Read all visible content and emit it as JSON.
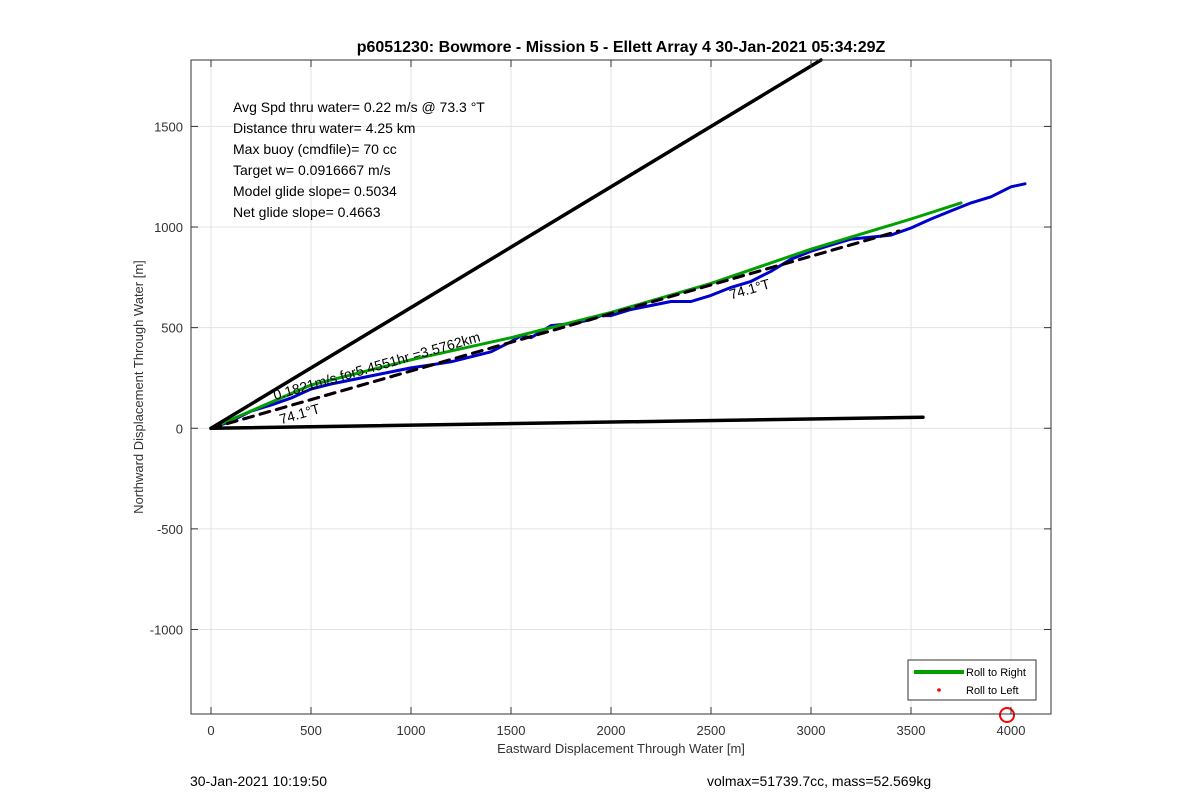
{
  "chart_data": {
    "type": "line",
    "title": "p6051230: Bowmore - Mission 5 - Ellett Array 4 30-Jan-2021 05:34:29Z",
    "xlabel": "Eastward Displacement Through Water [m]",
    "ylabel": "Northward Displacement Through Water [m]",
    "xlim": [
      -100,
      4200
    ],
    "ylim": [
      -1420,
      1830
    ],
    "xticks": [
      0,
      500,
      1000,
      1500,
      2000,
      2500,
      3000,
      3500,
      4000
    ],
    "yticks": [
      -1000,
      -500,
      0,
      500,
      1000,
      1500
    ],
    "grid": true,
    "legend_position": "bottom-right",
    "legend": [
      {
        "label": "Roll to Right",
        "color": "#00a000",
        "style": "line"
      },
      {
        "label": "Roll to Left",
        "color": "#ff0000",
        "style": "dot"
      }
    ],
    "info_text": [
      "Avg Spd thru water=  0.22 m/s @  73.3 °T",
      "Distance thru water=  4.25 km",
      "Max buoy (cmdfile)= 70 cc",
      "Target w= 0.0916667 m/s",
      "Model glide slope= 0.5034",
      "Net glide slope= 0.4663"
    ],
    "annotations": [
      {
        "text": "0.1821m/s for5.4551hr =3.5762km",
        "x": 320,
        "y": 140
      },
      {
        "text": "74.1°T",
        "x": 2600,
        "y": 640
      },
      {
        "text": "74.1°T",
        "x": 350,
        "y": 20
      }
    ],
    "series": [
      {
        "name": "",
        "color": "#0000cc",
        "style": "solid",
        "x": [
          0,
          100,
          200,
          300,
          400,
          500,
          600,
          700,
          800,
          900,
          1000,
          1100,
          1200,
          1300,
          1400,
          1500,
          1550,
          1600,
          1700,
          1800,
          1900,
          1950,
          2000,
          2100,
          2200,
          2300,
          2400,
          2500,
          2600,
          2700,
          2800,
          2900,
          3000,
          3100,
          3200,
          3300,
          3400,
          3500,
          3600,
          3700,
          3800,
          3900,
          4000,
          4070
        ],
        "y": [
          0,
          35,
          85,
          115,
          150,
          195,
          220,
          240,
          260,
          280,
          300,
          315,
          330,
          355,
          380,
          430,
          460,
          450,
          510,
          520,
          540,
          560,
          560,
          590,
          610,
          630,
          630,
          660,
          700,
          730,
          780,
          840,
          880,
          910,
          940,
          950,
          960,
          995,
          1040,
          1080,
          1120,
          1150,
          1200,
          1215
        ]
      },
      {
        "name": "",
        "color": "#00a000",
        "style": "solid",
        "x": [
          0,
          500,
          1000,
          1500,
          2000,
          2500,
          3000,
          3500,
          3750
        ],
        "y": [
          0,
          215,
          340,
          450,
          575,
          720,
          890,
          1040,
          1120
        ]
      },
      {
        "name": "",
        "color": "#ff00ff",
        "style": "dashed",
        "x": [
          0,
          3440
        ],
        "y": [
          0,
          980
        ]
      },
      {
        "name": "",
        "color": "#000000",
        "style": "dashed",
        "x": [
          0,
          3440
        ],
        "y": [
          0,
          980
        ]
      },
      {
        "name": "",
        "color": "#000000",
        "style": "solid-thick",
        "x": [
          0,
          3050
        ],
        "y": [
          0,
          1830
        ]
      },
      {
        "name": "",
        "color": "#000000",
        "style": "solid-thick",
        "x": [
          0,
          3560
        ],
        "y": [
          0,
          55
        ]
      }
    ],
    "markers": [
      {
        "name": "",
        "color": "#ff0000",
        "shape": "circle",
        "x": 3980,
        "y": -1420
      }
    ]
  },
  "footer": {
    "left": "30-Jan-2021 10:19:50",
    "right": "volmax=51739.7cc, mass=52.569kg"
  }
}
